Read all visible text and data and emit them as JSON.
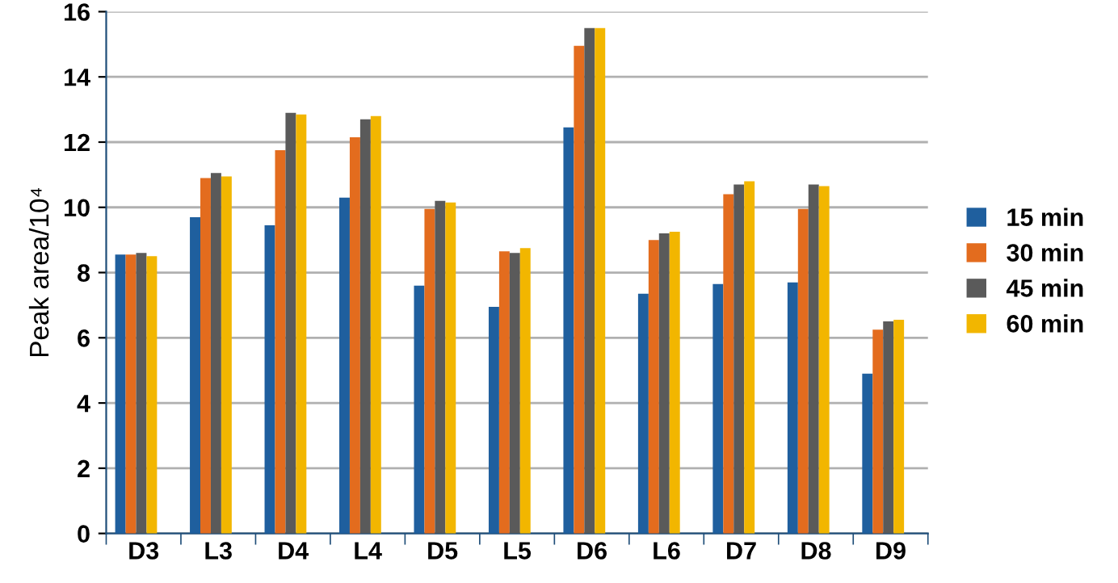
{
  "chart_data": {
    "type": "bar",
    "ylabel": "Peak area/10⁴",
    "categories": [
      "D3",
      "L3",
      "D4",
      "L4",
      "D5",
      "L5",
      "D6",
      "L6",
      "D7",
      "D8",
      "D9"
    ],
    "series": [
      {
        "name": "15 min",
        "color": "#1f5f9e",
        "values": [
          8.55,
          9.7,
          9.45,
          10.3,
          7.6,
          6.95,
          12.45,
          7.35,
          7.65,
          7.7,
          4.9
        ]
      },
      {
        "name": "30 min",
        "color": "#e36c1e",
        "values": [
          8.55,
          10.9,
          11.75,
          12.15,
          9.95,
          8.65,
          14.95,
          9.0,
          10.4,
          9.95,
          6.25
        ]
      },
      {
        "name": "45 min",
        "color": "#5a5a5a",
        "values": [
          8.6,
          11.05,
          12.9,
          12.7,
          10.2,
          8.6,
          15.5,
          9.2,
          10.7,
          10.7,
          6.5
        ]
      },
      {
        "name": "60 min",
        "color": "#f2b600",
        "values": [
          8.5,
          10.95,
          12.85,
          12.8,
          10.15,
          8.75,
          15.5,
          9.25,
          10.8,
          10.65,
          6.55
        ]
      }
    ],
    "ylim": [
      0,
      16
    ],
    "yticks": [
      0,
      2,
      4,
      6,
      8,
      10,
      12,
      14,
      16
    ],
    "grid": "y",
    "legend": "right"
  }
}
